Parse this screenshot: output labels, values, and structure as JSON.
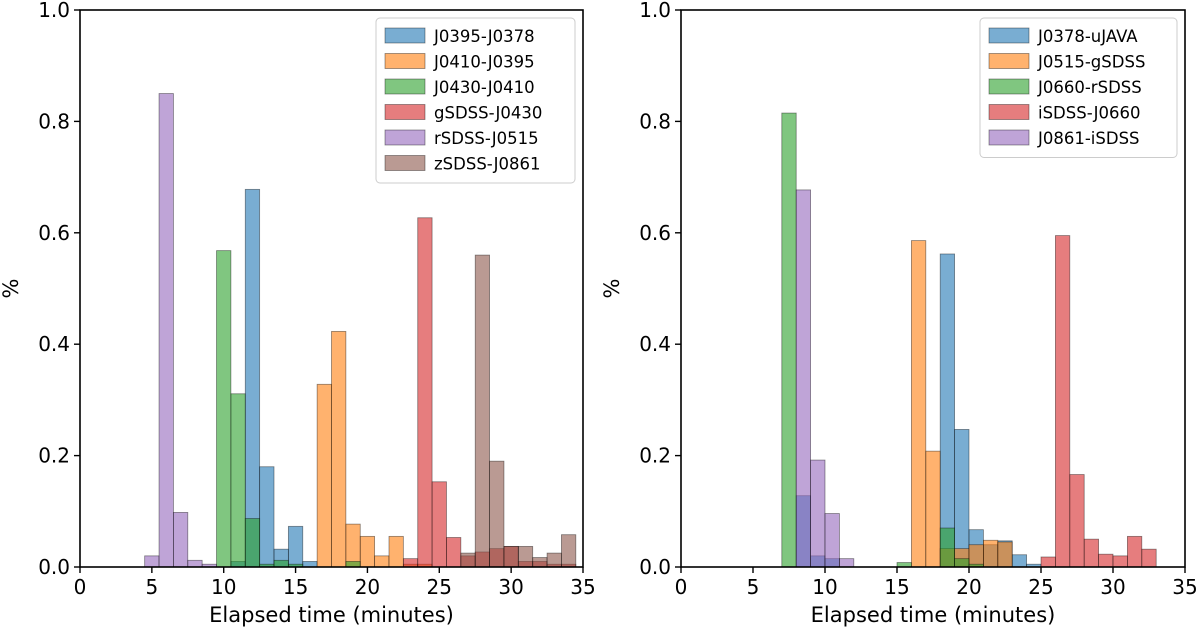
{
  "colors": {
    "blue": "#1f77b4",
    "orange": "#ff7f0e",
    "green": "#2ca02c",
    "red": "#d62728",
    "purple": "#9467bd",
    "brown": "#8c564b"
  },
  "chart_data": [
    {
      "type": "bar",
      "subtype": "histogram",
      "title": "",
      "xlabel": "Elapsed time (minutes)",
      "ylabel": "%",
      "xlim": [
        0,
        35
      ],
      "ylim": [
        0,
        1.0
      ],
      "xticks": [
        "0",
        "5",
        "10",
        "15",
        "20",
        "25",
        "30",
        "35"
      ],
      "yticks": [
        "0.0",
        "0.2",
        "0.4",
        "0.6",
        "0.8",
        "1.0"
      ],
      "legend_position": "top-right",
      "series": [
        {
          "name": "J0395-J0378",
          "color": "blue",
          "bins": [
            {
              "x0": 10.5,
              "x1": 11.5,
              "value": 0.01
            },
            {
              "x0": 11.5,
              "x1": 12.5,
              "value": 0.678
            },
            {
              "x0": 12.5,
              "x1": 13.5,
              "value": 0.18
            },
            {
              "x0": 13.5,
              "x1": 14.5,
              "value": 0.032
            },
            {
              "x0": 14.5,
              "x1": 15.5,
              "value": 0.073
            },
            {
              "x0": 15.5,
              "x1": 16.5,
              "value": 0.01
            }
          ]
        },
        {
          "name": "J0410-J0395",
          "color": "orange",
          "bins": [
            {
              "x0": 16.5,
              "x1": 17.5,
              "value": 0.328
            },
            {
              "x0": 17.5,
              "x1": 18.5,
              "value": 0.423
            },
            {
              "x0": 18.5,
              "x1": 19.5,
              "value": 0.077
            },
            {
              "x0": 19.5,
              "x1": 20.5,
              "value": 0.055
            },
            {
              "x0": 20.5,
              "x1": 21.5,
              "value": 0.02
            },
            {
              "x0": 21.5,
              "x1": 22.5,
              "value": 0.055
            },
            {
              "x0": 22.5,
              "x1": 23.5,
              "value": 0.005
            },
            {
              "x0": 23.5,
              "x1": 24.5,
              "value": 0.005
            }
          ]
        },
        {
          "name": "J0430-J0410",
          "color": "green",
          "bins": [
            {
              "x0": 9.5,
              "x1": 10.5,
              "value": 0.568
            },
            {
              "x0": 10.5,
              "x1": 11.5,
              "value": 0.311
            },
            {
              "x0": 11.5,
              "x1": 12.5,
              "value": 0.087
            },
            {
              "x0": 12.5,
              "x1": 13.5,
              "value": 0.005
            },
            {
              "x0": 13.5,
              "x1": 14.5,
              "value": 0.012
            },
            {
              "x0": 14.5,
              "x1": 15.5,
              "value": 0.005
            },
            {
              "x0": 18.5,
              "x1": 19.5,
              "value": 0.01
            }
          ]
        },
        {
          "name": "gSDSS-J0430",
          "color": "red",
          "bins": [
            {
              "x0": 22.5,
              "x1": 23.5,
              "value": 0.015
            },
            {
              "x0": 23.5,
              "x1": 24.5,
              "value": 0.627
            },
            {
              "x0": 24.5,
              "x1": 25.5,
              "value": 0.153
            },
            {
              "x0": 25.5,
              "x1": 26.5,
              "value": 0.053
            },
            {
              "x0": 26.5,
              "x1": 27.5,
              "value": 0.02
            },
            {
              "x0": 27.5,
              "x1": 28.5,
              "value": 0.027
            },
            {
              "x0": 28.5,
              "x1": 29.5,
              "value": 0.033
            },
            {
              "x0": 29.5,
              "x1": 30.5,
              "value": 0.037
            },
            {
              "x0": 30.5,
              "x1": 31.5,
              "value": 0.01
            },
            {
              "x0": 31.5,
              "x1": 32.5,
              "value": 0.01
            },
            {
              "x0": 32.5,
              "x1": 33.5,
              "value": 0.005
            },
            {
              "x0": 33.5,
              "x1": 34.5,
              "value": 0.005
            }
          ]
        },
        {
          "name": "rSDSS-J0515",
          "color": "purple",
          "bins": [
            {
              "x0": 4.5,
              "x1": 5.5,
              "value": 0.02
            },
            {
              "x0": 5.5,
              "x1": 6.5,
              "value": 0.85
            },
            {
              "x0": 6.5,
              "x1": 7.5,
              "value": 0.098
            },
            {
              "x0": 7.5,
              "x1": 8.5,
              "value": 0.012
            },
            {
              "x0": 8.5,
              "x1": 9.5,
              "value": 0.005
            }
          ]
        },
        {
          "name": "zSDSS-J0861",
          "color": "brown",
          "bins": [
            {
              "x0": 26.5,
              "x1": 27.5,
              "value": 0.025
            },
            {
              "x0": 27.5,
              "x1": 28.5,
              "value": 0.56
            },
            {
              "x0": 28.5,
              "x1": 29.5,
              "value": 0.19
            },
            {
              "x0": 29.5,
              "x1": 30.5,
              "value": 0.037
            },
            {
              "x0": 30.5,
              "x1": 31.5,
              "value": 0.037
            },
            {
              "x0": 31.5,
              "x1": 32.5,
              "value": 0.017
            },
            {
              "x0": 32.5,
              "x1": 33.5,
              "value": 0.025
            },
            {
              "x0": 33.5,
              "x1": 34.5,
              "value": 0.058
            }
          ]
        }
      ]
    },
    {
      "type": "bar",
      "subtype": "histogram",
      "title": "",
      "xlabel": "Elapsed time (minutes)",
      "ylabel": "%",
      "xlim": [
        0,
        35
      ],
      "ylim": [
        0,
        1.0
      ],
      "xticks": [
        "0",
        "5",
        "10",
        "15",
        "20",
        "25",
        "30",
        "35"
      ],
      "yticks": [
        "0.0",
        "0.2",
        "0.4",
        "0.6",
        "0.8",
        "1.0"
      ],
      "legend_position": "top-right",
      "series": [
        {
          "name": "J0378-uJAVA",
          "color": "blue",
          "bins": [
            {
              "x0": 8.0,
              "x1": 9.0,
              "value": 0.128
            },
            {
              "x0": 9.0,
              "x1": 10.0,
              "value": 0.02
            },
            {
              "x0": 10.0,
              "x1": 11.0,
              "value": 0.015
            },
            {
              "x0": 18.0,
              "x1": 19.0,
              "value": 0.562
            },
            {
              "x0": 19.0,
              "x1": 20.0,
              "value": 0.247
            },
            {
              "x0": 20.0,
              "x1": 21.0,
              "value": 0.067
            },
            {
              "x0": 21.0,
              "x1": 22.0,
              "value": 0.04
            },
            {
              "x0": 22.0,
              "x1": 23.0,
              "value": 0.047
            },
            {
              "x0": 23.0,
              "x1": 24.0,
              "value": 0.022
            },
            {
              "x0": 24.0,
              "x1": 25.0,
              "value": 0.005
            }
          ]
        },
        {
          "name": "J0515-gSDSS",
          "color": "orange",
          "bins": [
            {
              "x0": 16.0,
              "x1": 17.0,
              "value": 0.586
            },
            {
              "x0": 17.0,
              "x1": 18.0,
              "value": 0.208
            },
            {
              "x0": 18.0,
              "x1": 19.0,
              "value": 0.033
            },
            {
              "x0": 19.0,
              "x1": 20.0,
              "value": 0.033
            },
            {
              "x0": 20.0,
              "x1": 21.0,
              "value": 0.04
            },
            {
              "x0": 21.0,
              "x1": 22.0,
              "value": 0.048
            },
            {
              "x0": 22.0,
              "x1": 23.0,
              "value": 0.045
            }
          ]
        },
        {
          "name": "J0660-rSDSS",
          "color": "green",
          "bins": [
            {
              "x0": 7.0,
              "x1": 8.0,
              "value": 0.815
            },
            {
              "x0": 15.0,
              "x1": 16.0,
              "value": 0.008
            },
            {
              "x0": 18.0,
              "x1": 19.0,
              "value": 0.07
            },
            {
              "x0": 19.0,
              "x1": 20.0,
              "value": 0.015
            },
            {
              "x0": 20.0,
              "x1": 21.0,
              "value": 0.005
            }
          ]
        },
        {
          "name": "iSDSS-J0660",
          "color": "red",
          "bins": [
            {
              "x0": 25.0,
              "x1": 26.0,
              "value": 0.018
            },
            {
              "x0": 26.0,
              "x1": 27.0,
              "value": 0.595
            },
            {
              "x0": 27.0,
              "x1": 28.0,
              "value": 0.166
            },
            {
              "x0": 28.0,
              "x1": 29.0,
              "value": 0.05
            },
            {
              "x0": 29.0,
              "x1": 30.0,
              "value": 0.023
            },
            {
              "x0": 30.0,
              "x1": 31.0,
              "value": 0.02
            },
            {
              "x0": 31.0,
              "x1": 32.0,
              "value": 0.055
            },
            {
              "x0": 32.0,
              "x1": 33.0,
              "value": 0.032
            }
          ]
        },
        {
          "name": "J0861-iSDSS",
          "color": "purple",
          "bins": [
            {
              "x0": 8.0,
              "x1": 9.0,
              "value": 0.677
            },
            {
              "x0": 9.0,
              "x1": 10.0,
              "value": 0.192
            },
            {
              "x0": 10.0,
              "x1": 11.0,
              "value": 0.096
            },
            {
              "x0": 11.0,
              "x1": 12.0,
              "value": 0.015
            }
          ]
        }
      ]
    }
  ]
}
